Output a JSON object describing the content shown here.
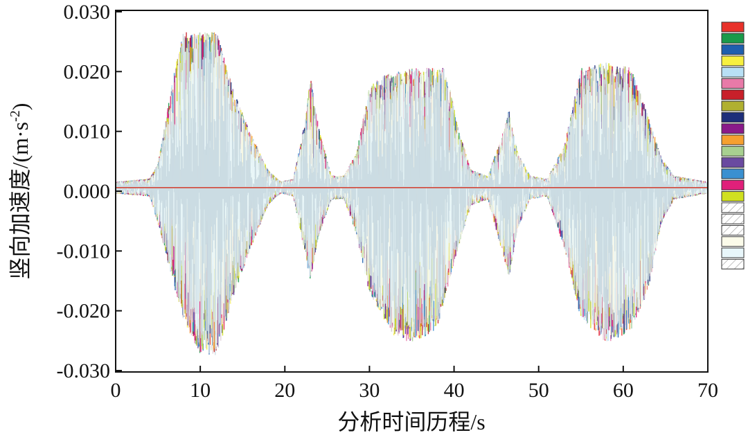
{
  "chart_data": {
    "type": "line",
    "title": "",
    "xlabel": "分析时间历程/s",
    "ylabel": "竖向加速度/(m·s⁻²)",
    "ylabel_parts": {
      "main": "竖向加速度/(m·s",
      "sup": "-2",
      "close": ")"
    },
    "xlim": [
      0,
      70
    ],
    "ylim": [
      -0.03,
      0.03
    ],
    "xticks": [
      0,
      10,
      20,
      30,
      40,
      50,
      60,
      70
    ],
    "xtick_labels": [
      "0",
      "10",
      "20",
      "30",
      "40",
      "50",
      "60",
      "70"
    ],
    "yticks": [
      0.03,
      0.02,
      0.01,
      0.0,
      -0.01,
      -0.02,
      -0.03
    ],
    "ytick_labels": [
      "0.030",
      "0.020",
      "0.010",
      "0.000",
      "-0.010",
      "-0.020",
      "-0.030"
    ],
    "grid": false,
    "legend_placement": "right",
    "series_count": 22,
    "series_colors": [
      "#e8312a",
      "#1a9a4a",
      "#1f5fae",
      "#f7f040",
      "#b8e0f5",
      "#e87aa8",
      "#c8202a",
      "#b0b030",
      "#1e2e7a",
      "#8a1a8a",
      "#f5a030",
      "#a8d090",
      "#6a4aa0",
      "#3a90d0",
      "#e0207a",
      "#d0e020",
      "#ffffff",
      "#f8fbf4",
      "#ffffff",
      "#fbfbea",
      "#e8f6fa",
      "#ffffff"
    ],
    "series_hatched": [
      false,
      false,
      false,
      false,
      false,
      false,
      false,
      false,
      false,
      false,
      false,
      false,
      false,
      false,
      false,
      false,
      true,
      true,
      true,
      false,
      false,
      true
    ],
    "envelope_upper": [
      [
        0,
        0.001
      ],
      [
        4,
        0.0015
      ],
      [
        5,
        0.004
      ],
      [
        7,
        0.02
      ],
      [
        8,
        0.026
      ],
      [
        10,
        0.026
      ],
      [
        12,
        0.026
      ],
      [
        14,
        0.016
      ],
      [
        16,
        0.009
      ],
      [
        18,
        0.003
      ],
      [
        19.5,
        0.001
      ],
      [
        21,
        0.0015
      ],
      [
        22.5,
        0.012
      ],
      [
        23,
        0.019
      ],
      [
        24,
        0.01
      ],
      [
        25.5,
        0.002
      ],
      [
        27,
        0.002
      ],
      [
        28.5,
        0.006
      ],
      [
        30,
        0.017
      ],
      [
        32,
        0.019
      ],
      [
        35,
        0.02
      ],
      [
        38,
        0.02
      ],
      [
        39,
        0.02
      ],
      [
        40.5,
        0.01
      ],
      [
        42,
        0.003
      ],
      [
        44,
        0.002
      ],
      [
        45.5,
        0.008
      ],
      [
        46.5,
        0.013
      ],
      [
        47.5,
        0.006
      ],
      [
        49,
        0.002
      ],
      [
        51,
        0.0015
      ],
      [
        53,
        0.007
      ],
      [
        55,
        0.02
      ],
      [
        58,
        0.021
      ],
      [
        61,
        0.02
      ],
      [
        63,
        0.012
      ],
      [
        64.5,
        0.005
      ],
      [
        66,
        0.002
      ],
      [
        70,
        0.001
      ]
    ],
    "envelope_lower": [
      [
        0,
        -0.001
      ],
      [
        4,
        -0.0015
      ],
      [
        5,
        -0.006
      ],
      [
        7,
        -0.017
      ],
      [
        8,
        -0.022
      ],
      [
        10,
        -0.028
      ],
      [
        12,
        -0.028
      ],
      [
        14,
        -0.018
      ],
      [
        16,
        -0.01
      ],
      [
        18,
        -0.003
      ],
      [
        19.5,
        -0.001
      ],
      [
        21,
        -0.0015
      ],
      [
        22.5,
        -0.012
      ],
      [
        23,
        -0.016
      ],
      [
        24,
        -0.008
      ],
      [
        25.5,
        -0.002
      ],
      [
        27,
        -0.002
      ],
      [
        28.5,
        -0.008
      ],
      [
        30,
        -0.018
      ],
      [
        33,
        -0.025
      ],
      [
        35,
        -0.026
      ],
      [
        38,
        -0.024
      ],
      [
        39,
        -0.018
      ],
      [
        40.5,
        -0.01
      ],
      [
        42,
        -0.003
      ],
      [
        44,
        -0.002
      ],
      [
        45.5,
        -0.01
      ],
      [
        46.5,
        -0.015
      ],
      [
        47.5,
        -0.007
      ],
      [
        49,
        -0.002
      ],
      [
        51,
        -0.0015
      ],
      [
        53,
        -0.01
      ],
      [
        55,
        -0.022
      ],
      [
        58,
        -0.026
      ],
      [
        61,
        -0.024
      ],
      [
        63,
        -0.017
      ],
      [
        64.5,
        -0.006
      ],
      [
        66,
        -0.002
      ],
      [
        70,
        -0.001
      ]
    ]
  }
}
